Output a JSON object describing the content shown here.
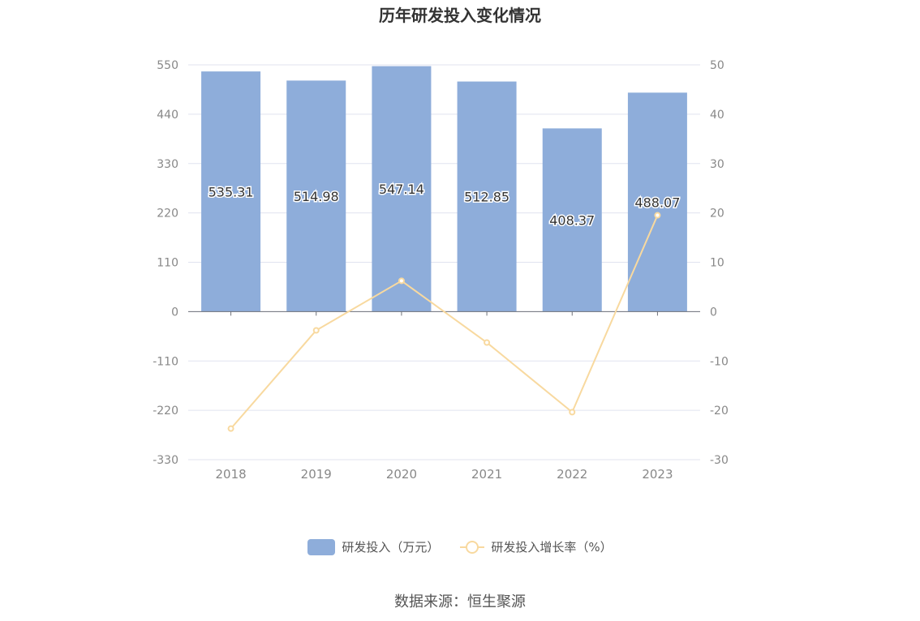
{
  "title": "历年研发投入变化情况",
  "source": "数据来源：恒生聚源",
  "chart_data": {
    "type": "bar",
    "title": "历年研发投入变化情况",
    "categories": [
      "2018",
      "2019",
      "2020",
      "2021",
      "2022",
      "2023"
    ],
    "series": [
      {
        "name": "研发投入（万元）",
        "type": "bar",
        "axis": "left",
        "color": "#8eadda",
        "values": [
          535.31,
          514.98,
          547.14,
          512.85,
          408.37,
          488.07
        ],
        "labels": [
          "535.31",
          "514.98",
          "547.14",
          "512.85",
          "408.37",
          "488.07"
        ]
      },
      {
        "name": "研发投入增长率（%）",
        "type": "line",
        "axis": "right",
        "color": "#f8d99f",
        "values": [
          -23.7,
          -3.8,
          6.24,
          -6.27,
          -20.37,
          19.52
        ]
      }
    ],
    "y_left": {
      "min": -330,
      "max": 550,
      "ticks": [
        "550",
        "440",
        "330",
        "220",
        "110",
        "0",
        "-110",
        "-220",
        "-330"
      ]
    },
    "y_right": {
      "min": -30,
      "max": 50,
      "ticks": [
        "50",
        "40",
        "30",
        "20",
        "10",
        "0",
        "-10",
        "-20",
        "-30"
      ]
    },
    "grid": true,
    "legend_position": "bottom"
  }
}
